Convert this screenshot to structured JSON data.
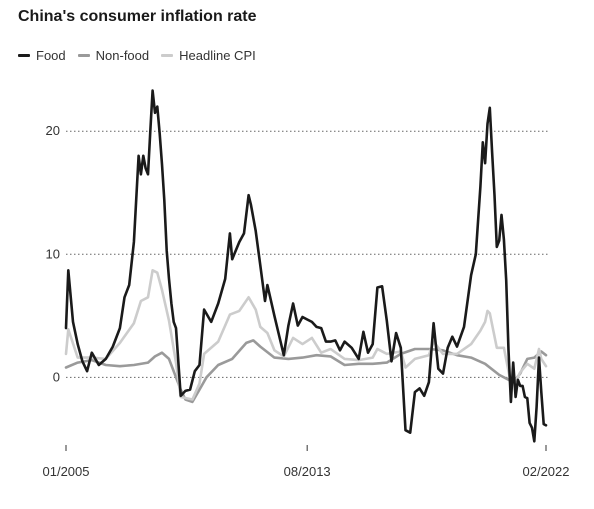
{
  "title": "China's consumer inflation rate",
  "chart_data": {
    "type": "line",
    "title": "China's consumer inflation rate",
    "xlabel": "",
    "ylabel": "",
    "x_range": [
      "2005-01",
      "2022-02"
    ],
    "x_ticks": [
      "01/2005",
      "08/2013",
      "02/2022"
    ],
    "ylim": [
      -5.5,
      24
    ],
    "y_ticks": [
      0,
      10,
      20
    ],
    "grid": "horizontal dotted",
    "legend": "top-left",
    "series": [
      {
        "name": "Food",
        "color": "#1a1a1a",
        "points": [
          [
            "2005-01",
            4.0
          ],
          [
            "2005-02",
            8.7
          ],
          [
            "2005-04",
            4.5
          ],
          [
            "2005-06",
            2.7
          ],
          [
            "2005-08",
            1.3
          ],
          [
            "2005-10",
            0.5
          ],
          [
            "2005-12",
            2.0
          ],
          [
            "2006-03",
            1.0
          ],
          [
            "2006-06",
            1.5
          ],
          [
            "2006-09",
            2.5
          ],
          [
            "2006-12",
            4.0
          ],
          [
            "2007-02",
            6.5
          ],
          [
            "2007-04",
            7.5
          ],
          [
            "2007-06",
            11.0
          ],
          [
            "2007-08",
            18.0
          ],
          [
            "2007-09",
            16.5
          ],
          [
            "2007-10",
            18.0
          ],
          [
            "2007-11",
            17.0
          ],
          [
            "2007-12",
            16.5
          ],
          [
            "2008-01",
            20.0
          ],
          [
            "2008-02",
            23.3
          ],
          [
            "2008-03",
            21.5
          ],
          [
            "2008-04",
            22.0
          ],
          [
            "2008-05",
            19.8
          ],
          [
            "2008-06",
            17.3
          ],
          [
            "2008-07",
            14.4
          ],
          [
            "2008-08",
            10.3
          ],
          [
            "2008-09",
            8.0
          ],
          [
            "2008-10",
            6.0
          ],
          [
            "2008-11",
            4.5
          ],
          [
            "2008-12",
            4.0
          ],
          [
            "2009-02",
            -1.5
          ],
          [
            "2009-04",
            -1.1
          ],
          [
            "2009-06",
            -1.0
          ],
          [
            "2009-08",
            0.5
          ],
          [
            "2009-10",
            1.0
          ],
          [
            "2009-12",
            5.5
          ],
          [
            "2010-03",
            4.5
          ],
          [
            "2010-06",
            6.0
          ],
          [
            "2010-09",
            8.0
          ],
          [
            "2010-11",
            11.7
          ],
          [
            "2010-12",
            9.6
          ],
          [
            "2011-03",
            11.0
          ],
          [
            "2011-05",
            11.7
          ],
          [
            "2011-07",
            14.8
          ],
          [
            "2011-08",
            14.0
          ],
          [
            "2011-10",
            11.9
          ],
          [
            "2011-12",
            9.1
          ],
          [
            "2012-02",
            6.2
          ],
          [
            "2012-03",
            7.5
          ],
          [
            "2012-06",
            5.0
          ],
          [
            "2012-08",
            3.4
          ],
          [
            "2012-10",
            1.8
          ],
          [
            "2012-12",
            4.2
          ],
          [
            "2013-02",
            6.0
          ],
          [
            "2013-04",
            4.2
          ],
          [
            "2013-06",
            4.9
          ],
          [
            "2013-08",
            4.7
          ],
          [
            "2013-10",
            4.5
          ],
          [
            "2013-12",
            4.1
          ],
          [
            "2014-02",
            4.0
          ],
          [
            "2014-04",
            2.9
          ],
          [
            "2014-06",
            2.9
          ],
          [
            "2014-08",
            3.0
          ],
          [
            "2014-10",
            2.2
          ],
          [
            "2014-12",
            2.9
          ],
          [
            "2015-03",
            2.4
          ],
          [
            "2015-06",
            1.5
          ],
          [
            "2015-08",
            3.7
          ],
          [
            "2015-10",
            2.0
          ],
          [
            "2015-12",
            2.7
          ],
          [
            "2016-02",
            7.3
          ],
          [
            "2016-04",
            7.4
          ],
          [
            "2016-06",
            4.6
          ],
          [
            "2016-08",
            1.3
          ],
          [
            "2016-10",
            3.6
          ],
          [
            "2016-12",
            2.4
          ],
          [
            "2017-02",
            -4.3
          ],
          [
            "2017-04",
            -4.5
          ],
          [
            "2017-06",
            -1.2
          ],
          [
            "2017-08",
            -0.9
          ],
          [
            "2017-10",
            -1.5
          ],
          [
            "2017-12",
            -0.4
          ],
          [
            "2018-02",
            4.4
          ],
          [
            "2018-04",
            0.7
          ],
          [
            "2018-06",
            0.3
          ],
          [
            "2018-08",
            2.4
          ],
          [
            "2018-10",
            3.3
          ],
          [
            "2018-12",
            2.5
          ],
          [
            "2019-03",
            4.1
          ],
          [
            "2019-06",
            8.3
          ],
          [
            "2019-08",
            10.0
          ],
          [
            "2019-10",
            15.5
          ],
          [
            "2019-11",
            19.1
          ],
          [
            "2019-12",
            17.4
          ],
          [
            "2020-01",
            20.6
          ],
          [
            "2020-02",
            21.9
          ],
          [
            "2020-03",
            18.3
          ],
          [
            "2020-04",
            14.8
          ],
          [
            "2020-05",
            10.6
          ],
          [
            "2020-06",
            11.1
          ],
          [
            "2020-07",
            13.2
          ],
          [
            "2020-08",
            11.2
          ],
          [
            "2020-09",
            7.9
          ],
          [
            "2020-10",
            2.2
          ],
          [
            "2020-11",
            -2.0
          ],
          [
            "2020-12",
            1.2
          ],
          [
            "2021-01",
            -1.6
          ],
          [
            "2021-02",
            -0.2
          ],
          [
            "2021-03",
            -0.7
          ],
          [
            "2021-04",
            -0.7
          ],
          [
            "2021-05",
            -1.6
          ],
          [
            "2021-06",
            -1.7
          ],
          [
            "2021-07",
            -3.7
          ],
          [
            "2021-08",
            -4.1
          ],
          [
            "2021-09",
            -5.2
          ],
          [
            "2021-10",
            -2.4
          ],
          [
            "2021-11",
            1.6
          ],
          [
            "2021-12",
            -1.2
          ],
          [
            "2022-01",
            -3.8
          ],
          [
            "2022-02",
            -3.9
          ]
        ]
      },
      {
        "name": "Non-food",
        "color": "#9a9a9a",
        "points": [
          [
            "2005-01",
            0.8
          ],
          [
            "2005-06",
            1.2
          ],
          [
            "2005-12",
            1.4
          ],
          [
            "2006-06",
            1.0
          ],
          [
            "2006-12",
            0.9
          ],
          [
            "2007-06",
            1.0
          ],
          [
            "2007-12",
            1.2
          ],
          [
            "2008-03",
            1.7
          ],
          [
            "2008-06",
            2.0
          ],
          [
            "2008-09",
            1.5
          ],
          [
            "2008-12",
            0.0
          ],
          [
            "2009-02",
            -1.0
          ],
          [
            "2009-04",
            -1.8
          ],
          [
            "2009-07",
            -2.0
          ],
          [
            "2009-10",
            -1.0
          ],
          [
            "2010-01",
            0.0
          ],
          [
            "2010-06",
            1.0
          ],
          [
            "2010-12",
            1.5
          ],
          [
            "2011-06",
            2.8
          ],
          [
            "2011-09",
            3.0
          ],
          [
            "2011-12",
            2.5
          ],
          [
            "2012-06",
            1.6
          ],
          [
            "2012-12",
            1.5
          ],
          [
            "2013-06",
            1.6
          ],
          [
            "2013-12",
            1.8
          ],
          [
            "2014-06",
            1.7
          ],
          [
            "2014-12",
            1.0
          ],
          [
            "2015-06",
            1.1
          ],
          [
            "2015-12",
            1.1
          ],
          [
            "2016-06",
            1.2
          ],
          [
            "2016-12",
            1.9
          ],
          [
            "2017-06",
            2.3
          ],
          [
            "2017-12",
            2.3
          ],
          [
            "2018-06",
            2.2
          ],
          [
            "2018-12",
            1.8
          ],
          [
            "2019-06",
            1.6
          ],
          [
            "2019-12",
            1.1
          ],
          [
            "2020-06",
            0.2
          ],
          [
            "2020-12",
            -0.4
          ],
          [
            "2021-03",
            0.3
          ],
          [
            "2021-06",
            1.5
          ],
          [
            "2021-09",
            1.6
          ],
          [
            "2021-12",
            2.1
          ],
          [
            "2022-02",
            1.8
          ]
        ]
      },
      {
        "name": "Headline CPI",
        "color": "#cccccc",
        "points": [
          [
            "2005-01",
            1.9
          ],
          [
            "2005-02",
            3.9
          ],
          [
            "2005-06",
            1.6
          ],
          [
            "2005-12",
            1.6
          ],
          [
            "2006-06",
            1.5
          ],
          [
            "2006-12",
            2.8
          ],
          [
            "2007-06",
            4.4
          ],
          [
            "2007-09",
            6.2
          ],
          [
            "2007-12",
            6.5
          ],
          [
            "2008-02",
            8.7
          ],
          [
            "2008-04",
            8.5
          ],
          [
            "2008-06",
            7.1
          ],
          [
            "2008-09",
            4.6
          ],
          [
            "2008-12",
            1.2
          ],
          [
            "2009-02",
            -1.6
          ],
          [
            "2009-07",
            -1.8
          ],
          [
            "2009-10",
            -0.5
          ],
          [
            "2009-12",
            1.9
          ],
          [
            "2010-06",
            2.9
          ],
          [
            "2010-11",
            5.1
          ],
          [
            "2011-03",
            5.4
          ],
          [
            "2011-07",
            6.5
          ],
          [
            "2011-10",
            5.5
          ],
          [
            "2011-12",
            4.1
          ],
          [
            "2012-03",
            3.6
          ],
          [
            "2012-06",
            2.2
          ],
          [
            "2012-10",
            1.7
          ],
          [
            "2013-02",
            3.2
          ],
          [
            "2013-06",
            2.7
          ],
          [
            "2013-10",
            3.2
          ],
          [
            "2014-02",
            2.0
          ],
          [
            "2014-06",
            2.3
          ],
          [
            "2014-12",
            1.5
          ],
          [
            "2015-06",
            1.4
          ],
          [
            "2015-12",
            1.6
          ],
          [
            "2016-02",
            2.3
          ],
          [
            "2016-06",
            1.9
          ],
          [
            "2016-12",
            2.1
          ],
          [
            "2017-02",
            0.8
          ],
          [
            "2017-06",
            1.5
          ],
          [
            "2017-12",
            1.8
          ],
          [
            "2018-02",
            2.9
          ],
          [
            "2018-06",
            1.9
          ],
          [
            "2018-12",
            1.9
          ],
          [
            "2019-06",
            2.7
          ],
          [
            "2019-10",
            3.8
          ],
          [
            "2019-12",
            4.5
          ],
          [
            "2020-01",
            5.4
          ],
          [
            "2020-02",
            5.2
          ],
          [
            "2020-05",
            2.4
          ],
          [
            "2020-08",
            2.4
          ],
          [
            "2020-11",
            -0.5
          ],
          [
            "2021-01",
            -0.3
          ],
          [
            "2021-03",
            0.4
          ],
          [
            "2021-06",
            1.1
          ],
          [
            "2021-09",
            0.7
          ],
          [
            "2021-11",
            2.3
          ],
          [
            "2021-12",
            1.5
          ],
          [
            "2022-02",
            0.9
          ]
        ]
      }
    ]
  }
}
